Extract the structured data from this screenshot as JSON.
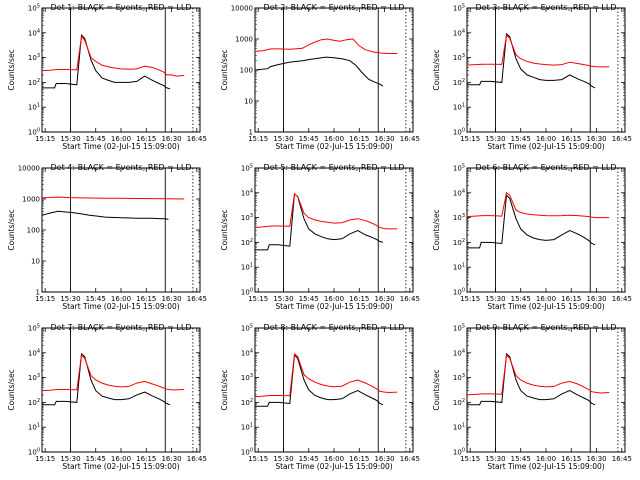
{
  "chart_data": [
    {
      "type": "line",
      "title": "Det 1: BLACK = Events, RED = LLD",
      "ylabel": "Counts/sec",
      "xlabel": "Start Time (02-Jul-15 15:09:00)",
      "x_ticks": [
        "15:15",
        "15:30",
        "15:45",
        "16:00",
        "16:15",
        "16:30",
        "16:45"
      ],
      "ylim": [
        1,
        100000
      ],
      "yscale": "log",
      "y_tick_labels": [
        "10^0",
        "10^1",
        "10^2",
        "10^3",
        "10^4",
        "10^5"
      ],
      "series": [
        {
          "color": "#000000",
          "x": [
            0,
            0.08,
            0.09,
            0.15,
            0.22,
            0.25,
            0.27,
            0.31,
            0.34,
            0.38,
            0.42,
            0.46,
            0.5,
            0.55,
            0.6,
            0.65,
            0.7,
            0.74,
            0.77,
            0.79,
            0.81
          ],
          "y": [
            60,
            60,
            90,
            90,
            80,
            8000,
            6000,
            800,
            300,
            150,
            120,
            100,
            100,
            100,
            110,
            180,
            120,
            90,
            75,
            60,
            55
          ]
        },
        {
          "color": "#ff0000",
          "x": [
            0,
            0.05,
            0.1,
            0.15,
            0.22,
            0.25,
            0.27,
            0.31,
            0.34,
            0.38,
            0.42,
            0.46,
            0.5,
            0.55,
            0.6,
            0.65,
            0.7,
            0.74,
            0.77,
            0.79,
            0.82,
            0.85,
            0.9
          ],
          "y": [
            300,
            310,
            330,
            330,
            320,
            7000,
            5000,
            1000,
            700,
            500,
            420,
            380,
            350,
            340,
            350,
            450,
            400,
            320,
            260,
            200,
            200,
            180,
            190
          ]
        }
      ]
    },
    {
      "type": "line",
      "title": "Det 2: BLACK = Events, RED = LLD",
      "ylabel": "Counts/sec",
      "xlabel": "Start Time (02-Jul-15 15:09:00)",
      "x_ticks": [
        "15:15",
        "15:30",
        "15:45",
        "16:00",
        "16:15",
        "16:30",
        "16:45"
      ],
      "ylim": [
        1,
        10000
      ],
      "yscale": "log",
      "y_tick_labels": [
        "1",
        "10",
        "100",
        "1000",
        "10000"
      ],
      "series": [
        {
          "color": "#000000",
          "x": [
            0,
            0.08,
            0.1,
            0.15,
            0.22,
            0.3,
            0.35,
            0.4,
            0.45,
            0.5,
            0.55,
            0.6,
            0.64,
            0.68,
            0.72,
            0.76,
            0.79,
            0.81
          ],
          "y": [
            100,
            110,
            130,
            150,
            180,
            200,
            220,
            240,
            260,
            250,
            230,
            200,
            140,
            80,
            50,
            40,
            35,
            30
          ]
        },
        {
          "color": "#ff0000",
          "x": [
            0,
            0.05,
            0.1,
            0.15,
            0.22,
            0.3,
            0.34,
            0.38,
            0.42,
            0.46,
            0.5,
            0.54,
            0.58,
            0.62,
            0.66,
            0.7,
            0.75,
            0.8,
            0.85,
            0.9
          ],
          "y": [
            400,
            420,
            480,
            480,
            470,
            500,
            650,
            800,
            950,
            1000,
            900,
            850,
            950,
            1000,
            600,
            450,
            380,
            350,
            340,
            340
          ]
        }
      ]
    },
    {
      "type": "line",
      "title": "Det 3: BLACK = Events, RED = LLD",
      "ylabel": "Counts/sec",
      "xlabel": "Start Time (02-Jul-15 15:09:00)",
      "x_ticks": [
        "15:15",
        "15:30",
        "15:45",
        "16:00",
        "16:15",
        "16:30",
        "16:45"
      ],
      "ylim": [
        1,
        100000
      ],
      "yscale": "log",
      "y_tick_labels": [
        "10^0",
        "10^1",
        "10^2",
        "10^3",
        "10^4",
        "10^5"
      ],
      "series": [
        {
          "color": "#000000",
          "x": [
            0,
            0.08,
            0.09,
            0.15,
            0.22,
            0.25,
            0.27,
            0.31,
            0.34,
            0.38,
            0.42,
            0.46,
            0.5,
            0.55,
            0.6,
            0.65,
            0.7,
            0.74,
            0.77,
            0.79,
            0.81
          ],
          "y": [
            80,
            80,
            110,
            110,
            100,
            9000,
            7000,
            900,
            350,
            200,
            160,
            130,
            120,
            120,
            130,
            200,
            140,
            110,
            90,
            70,
            60
          ]
        },
        {
          "color": "#ff0000",
          "x": [
            0,
            0.05,
            0.1,
            0.15,
            0.22,
            0.25,
            0.27,
            0.31,
            0.34,
            0.38,
            0.42,
            0.46,
            0.5,
            0.55,
            0.6,
            0.65,
            0.7,
            0.74,
            0.77,
            0.79,
            0.82,
            0.85,
            0.9
          ],
          "y": [
            500,
            520,
            540,
            540,
            530,
            8000,
            6000,
            1300,
            900,
            700,
            600,
            550,
            520,
            500,
            520,
            650,
            580,
            520,
            480,
            450,
            430,
            420,
            430
          ]
        }
      ]
    },
    {
      "type": "line",
      "title": "Det 4: BLACK = Events, RED = LLD",
      "ylabel": "Counts/sec",
      "xlabel": "Start Time (02-Jul-15 15:09:00)",
      "x_ticks": [
        "15:15",
        "15:30",
        "15:45",
        "16:00",
        "16:15",
        "16:30",
        "16:45"
      ],
      "ylim": [
        1,
        10000
      ],
      "yscale": "log",
      "y_tick_labels": [
        "1",
        "10",
        "100",
        "1000",
        "10000"
      ],
      "series": [
        {
          "color": "#000000",
          "x": [
            0,
            0.05,
            0.1,
            0.15,
            0.2,
            0.25,
            0.3,
            0.35,
            0.4,
            0.5,
            0.6,
            0.7,
            0.75,
            0.78,
            0.8
          ],
          "y": [
            300,
            350,
            400,
            380,
            360,
            330,
            300,
            280,
            260,
            250,
            240,
            240,
            230,
            230,
            220
          ]
        },
        {
          "color": "#ff0000",
          "x": [
            0,
            0.05,
            0.1,
            0.15,
            0.2,
            0.3,
            0.4,
            0.5,
            0.6,
            0.7,
            0.8,
            0.85,
            0.9
          ],
          "y": [
            1100,
            1120,
            1150,
            1130,
            1100,
            1080,
            1060,
            1050,
            1040,
            1030,
            1020,
            1010,
            1000
          ]
        }
      ]
    },
    {
      "type": "line",
      "title": "Det 5: BLACK = Events, RED = LLD",
      "ylabel": "Counts/sec",
      "xlabel": "Start Time (02-Jul-15 15:09:00)",
      "x_ticks": [
        "15:15",
        "15:30",
        "15:45",
        "16:00",
        "16:15",
        "16:30",
        "16:45"
      ],
      "ylim": [
        1,
        100000
      ],
      "yscale": "log",
      "y_tick_labels": [
        "10^0",
        "10^1",
        "10^2",
        "10^3",
        "10^4",
        "10^5"
      ],
      "series": [
        {
          "color": "#000000",
          "x": [
            0,
            0.08,
            0.09,
            0.15,
            0.22,
            0.25,
            0.27,
            0.31,
            0.34,
            0.38,
            0.42,
            0.46,
            0.5,
            0.55,
            0.6,
            0.65,
            0.7,
            0.74,
            0.77,
            0.79,
            0.81
          ],
          "y": [
            50,
            50,
            80,
            80,
            70,
            9000,
            7000,
            900,
            350,
            220,
            170,
            140,
            130,
            140,
            220,
            300,
            200,
            160,
            130,
            110,
            100
          ]
        },
        {
          "color": "#ff0000",
          "x": [
            0,
            0.05,
            0.1,
            0.15,
            0.22,
            0.25,
            0.27,
            0.31,
            0.34,
            0.38,
            0.42,
            0.46,
            0.5,
            0.55,
            0.6,
            0.65,
            0.7,
            0.74,
            0.77,
            0.79,
            0.82,
            0.85,
            0.9
          ],
          "y": [
            400,
            420,
            460,
            460,
            450,
            9000,
            7000,
            1500,
            1000,
            800,
            700,
            650,
            600,
            620,
            800,
            900,
            750,
            600,
            480,
            400,
            360,
            350,
            350
          ]
        }
      ]
    },
    {
      "type": "line",
      "title": "Det 6: BLACK = Events, RED = LLD",
      "ylabel": "Counts/sec",
      "xlabel": "Start Time (02-Jul-15 15:09:00)",
      "x_ticks": [
        "15:15",
        "15:30",
        "15:45",
        "16:00",
        "16:15",
        "16:30",
        "16:45"
      ],
      "ylim": [
        1,
        100000
      ],
      "yscale": "log",
      "y_tick_labels": [
        "10^0",
        "10^1",
        "10^2",
        "10^3",
        "10^4",
        "10^5"
      ],
      "series": [
        {
          "color": "#000000",
          "x": [
            0,
            0.08,
            0.09,
            0.15,
            0.22,
            0.25,
            0.27,
            0.31,
            0.34,
            0.38,
            0.42,
            0.46,
            0.5,
            0.55,
            0.6,
            0.65,
            0.7,
            0.74,
            0.77,
            0.79,
            0.81
          ],
          "y": [
            60,
            60,
            100,
            100,
            90,
            8000,
            6000,
            900,
            350,
            200,
            150,
            130,
            120,
            130,
            200,
            300,
            220,
            160,
            120,
            90,
            80
          ]
        },
        {
          "color": "#ff0000",
          "x": [
            0,
            0.05,
            0.1,
            0.15,
            0.22,
            0.25,
            0.27,
            0.31,
            0.34,
            0.38,
            0.42,
            0.46,
            0.5,
            0.55,
            0.6,
            0.65,
            0.7,
            0.74,
            0.77,
            0.79,
            0.82,
            0.85,
            0.9
          ],
          "y": [
            1100,
            1150,
            1200,
            1200,
            1150,
            10000,
            8000,
            2000,
            1600,
            1400,
            1300,
            1250,
            1200,
            1180,
            1200,
            1250,
            1200,
            1150,
            1100,
            1050,
            1000,
            1000,
            1000
          ]
        }
      ]
    },
    {
      "type": "line",
      "title": "Det 7: BLACK = Events, RED = LLD",
      "ylabel": "Counts/sec",
      "xlabel": "Start Time (02-Jul-15 15:09:00)",
      "x_ticks": [
        "15:15",
        "15:30",
        "15:45",
        "16:00",
        "16:15",
        "16:30",
        "16:45"
      ],
      "ylim": [
        1,
        100000
      ],
      "yscale": "log",
      "y_tick_labels": [
        "10^0",
        "10^1",
        "10^2",
        "10^3",
        "10^4",
        "10^5"
      ],
      "series": [
        {
          "color": "#000000",
          "x": [
            0,
            0.08,
            0.09,
            0.15,
            0.22,
            0.25,
            0.27,
            0.31,
            0.34,
            0.38,
            0.42,
            0.46,
            0.5,
            0.55,
            0.6,
            0.65,
            0.7,
            0.74,
            0.77,
            0.79,
            0.81
          ],
          "y": [
            80,
            80,
            110,
            110,
            100,
            9000,
            7000,
            800,
            300,
            180,
            150,
            130,
            130,
            140,
            200,
            260,
            180,
            140,
            110,
            90,
            80
          ]
        },
        {
          "color": "#ff0000",
          "x": [
            0,
            0.05,
            0.1,
            0.15,
            0.22,
            0.25,
            0.27,
            0.31,
            0.34,
            0.38,
            0.42,
            0.46,
            0.5,
            0.55,
            0.6,
            0.65,
            0.7,
            0.74,
            0.77,
            0.79,
            0.82,
            0.85,
            0.9
          ],
          "y": [
            300,
            310,
            330,
            330,
            320,
            8000,
            6000,
            1200,
            800,
            600,
            500,
            450,
            420,
            440,
            600,
            700,
            550,
            450,
            380,
            340,
            320,
            320,
            330
          ]
        }
      ]
    },
    {
      "type": "line",
      "title": "Det 8: BLACK = Events, RED = LLD",
      "ylabel": "Counts/sec",
      "xlabel": "Start Time (02-Jul-15 15:09:00)",
      "x_ticks": [
        "15:15",
        "15:30",
        "15:45",
        "16:00",
        "16:15",
        "16:30",
        "16:45"
      ],
      "ylim": [
        1,
        100000
      ],
      "yscale": "log",
      "y_tick_labels": [
        "10^0",
        "10^1",
        "10^2",
        "10^3",
        "10^4",
        "10^5"
      ],
      "series": [
        {
          "color": "#000000",
          "x": [
            0,
            0.08,
            0.09,
            0.15,
            0.22,
            0.25,
            0.27,
            0.31,
            0.34,
            0.38,
            0.42,
            0.46,
            0.5,
            0.55,
            0.6,
            0.65,
            0.7,
            0.74,
            0.77,
            0.79,
            0.81
          ],
          "y": [
            70,
            70,
            100,
            100,
            90,
            8000,
            6000,
            800,
            320,
            190,
            150,
            130,
            130,
            140,
            220,
            300,
            200,
            150,
            120,
            90,
            80
          ]
        },
        {
          "color": "#ff0000",
          "x": [
            0,
            0.05,
            0.1,
            0.15,
            0.22,
            0.25,
            0.27,
            0.31,
            0.34,
            0.38,
            0.42,
            0.46,
            0.5,
            0.55,
            0.6,
            0.65,
            0.7,
            0.74,
            0.77,
            0.79,
            0.82,
            0.85,
            0.9
          ],
          "y": [
            170,
            180,
            190,
            190,
            185,
            9000,
            7000,
            1300,
            900,
            650,
            520,
            460,
            430,
            450,
            650,
            800,
            600,
            450,
            350,
            280,
            260,
            250,
            260
          ]
        }
      ]
    },
    {
      "type": "line",
      "title": "Det 9: BLACK = Events, RED = LLD",
      "ylabel": "Counts/sec",
      "xlabel": "Start Time (02-Jul-15 15:09:00)",
      "x_ticks": [
        "15:15",
        "15:30",
        "15:45",
        "16:00",
        "16:15",
        "16:30",
        "16:45"
      ],
      "ylim": [
        1,
        100000
      ],
      "yscale": "log",
      "y_tick_labels": [
        "10^0",
        "10^1",
        "10^2",
        "10^3",
        "10^4",
        "10^5"
      ],
      "series": [
        {
          "color": "#000000",
          "x": [
            0,
            0.08,
            0.09,
            0.15,
            0.22,
            0.25,
            0.27,
            0.31,
            0.34,
            0.38,
            0.42,
            0.46,
            0.5,
            0.55,
            0.6,
            0.65,
            0.7,
            0.74,
            0.77,
            0.79,
            0.81
          ],
          "y": [
            80,
            80,
            110,
            110,
            100,
            9000,
            7000,
            800,
            300,
            180,
            150,
            130,
            130,
            140,
            220,
            300,
            200,
            150,
            120,
            90,
            80
          ]
        },
        {
          "color": "#ff0000",
          "x": [
            0,
            0.05,
            0.1,
            0.15,
            0.22,
            0.25,
            0.27,
            0.31,
            0.34,
            0.38,
            0.42,
            0.46,
            0.5,
            0.55,
            0.6,
            0.65,
            0.7,
            0.74,
            0.77,
            0.79,
            0.82,
            0.85,
            0.9
          ],
          "y": [
            200,
            210,
            220,
            220,
            215,
            8000,
            6000,
            1200,
            800,
            600,
            500,
            450,
            420,
            440,
            600,
            700,
            550,
            420,
            330,
            270,
            250,
            240,
            250
          ]
        }
      ]
    }
  ]
}
